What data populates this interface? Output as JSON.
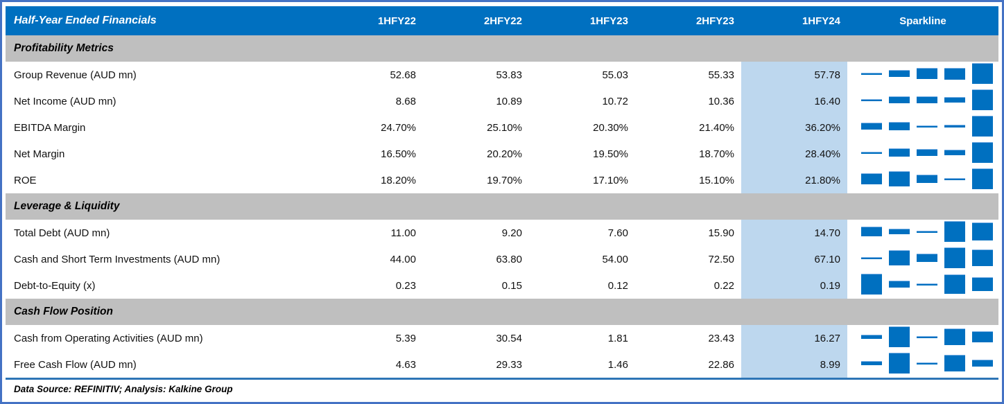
{
  "header": {
    "title": "Half-Year Ended Financials",
    "periods": [
      "1HFY22",
      "2HFY22",
      "1HFY23",
      "2HFY23",
      "1HFY24"
    ],
    "sparkline_label": "Sparkline",
    "highlight_period": "1HFY24"
  },
  "sections": [
    {
      "title": "Profitability Metrics",
      "rows": [
        {
          "label": "Group Revenue (AUD mn)",
          "values": [
            "52.68",
            "53.83",
            "55.03",
            "55.33",
            "57.78"
          ]
        },
        {
          "label": "Net Income (AUD mn)",
          "values": [
            "8.68",
            "10.89",
            "10.72",
            "10.36",
            "16.40"
          ]
        },
        {
          "label": "EBITDA Margin",
          "values": [
            "24.70%",
            "25.10%",
            "20.30%",
            "21.40%",
            "36.20%"
          ]
        },
        {
          "label": "Net Margin",
          "values": [
            "16.50%",
            "20.20%",
            "19.50%",
            "18.70%",
            "28.40%"
          ]
        },
        {
          "label": "ROE",
          "values": [
            "18.20%",
            "19.70%",
            "17.10%",
            "15.10%",
            "21.80%"
          ]
        }
      ]
    },
    {
      "title": "Leverage & Liquidity",
      "rows": [
        {
          "label": "Total Debt (AUD mn)",
          "values": [
            "11.00",
            "9.20",
            "7.60",
            "15.90",
            "14.70"
          ]
        },
        {
          "label": "Cash and Short Term Investments (AUD mn)",
          "values": [
            "44.00",
            "63.80",
            "54.00",
            "72.50",
            "67.10"
          ]
        },
        {
          "label": "Debt-to-Equity (x)",
          "values": [
            "0.23",
            "0.15",
            "0.12",
            "0.22",
            "0.19"
          ]
        }
      ]
    },
    {
      "title": "Cash Flow Position",
      "rows": [
        {
          "label": "Cash from Operating Activities (AUD mn)",
          "values": [
            "5.39",
            "30.54",
            "1.81",
            "23.43",
            "16.27"
          ]
        },
        {
          "label": "Free Cash Flow (AUD mn)",
          "values": [
            "4.63",
            "29.33",
            "1.46",
            "22.86",
            "8.99"
          ]
        }
      ]
    }
  ],
  "footer": {
    "note": "Data Source: REFINITIV; Analysis: Kalkine Group"
  },
  "colors": {
    "header_blue": "#0070C0",
    "section_gray": "#BFBFBF",
    "highlight_light_blue": "#BDD7EE",
    "sparkline_bar_blue": "#0070C0",
    "frame_border_blue": "#4472C4",
    "rule_blue": "#2E75B6"
  },
  "chart_data": {
    "type": "table",
    "title": "Half-Year Ended Financials",
    "categories": [
      "1HFY22",
      "2HFY22",
      "1HFY23",
      "2HFY23",
      "1HFY24"
    ],
    "highlighted_category": "1HFY24",
    "series": [
      {
        "name": "Group Revenue (AUD mn)",
        "section": "Profitability Metrics",
        "values": [
          52.68,
          53.83,
          55.03,
          55.33,
          57.78
        ],
        "unit": "AUD mn"
      },
      {
        "name": "Net Income (AUD mn)",
        "section": "Profitability Metrics",
        "values": [
          8.68,
          10.89,
          10.72,
          10.36,
          16.4
        ],
        "unit": "AUD mn"
      },
      {
        "name": "EBITDA Margin",
        "section": "Profitability Metrics",
        "values": [
          24.7,
          25.1,
          20.3,
          21.4,
          36.2
        ],
        "unit": "%"
      },
      {
        "name": "Net Margin",
        "section": "Profitability Metrics",
        "values": [
          16.5,
          20.2,
          19.5,
          18.7,
          28.4
        ],
        "unit": "%"
      },
      {
        "name": "ROE",
        "section": "Profitability Metrics",
        "values": [
          18.2,
          19.7,
          17.1,
          15.1,
          21.8
        ],
        "unit": "%"
      },
      {
        "name": "Total Debt (AUD mn)",
        "section": "Leverage & Liquidity",
        "values": [
          11.0,
          9.2,
          7.6,
          15.9,
          14.7
        ],
        "unit": "AUD mn"
      },
      {
        "name": "Cash and Short Term Investments (AUD mn)",
        "section": "Leverage & Liquidity",
        "values": [
          44.0,
          63.8,
          54.0,
          72.5,
          67.1
        ],
        "unit": "AUD mn"
      },
      {
        "name": "Debt-to-Equity (x)",
        "section": "Leverage & Liquidity",
        "values": [
          0.23,
          0.15,
          0.12,
          0.22,
          0.19
        ],
        "unit": "x"
      },
      {
        "name": "Cash from Operating Activities (AUD mn)",
        "section": "Cash Flow Position",
        "values": [
          5.39,
          30.54,
          1.81,
          23.43,
          16.27
        ],
        "unit": "AUD mn"
      },
      {
        "name": "Free Cash Flow (AUD mn)",
        "section": "Cash Flow Position",
        "values": [
          4.63,
          29.33,
          1.46,
          22.86,
          8.99
        ],
        "unit": "AUD mn"
      }
    ],
    "sparkline": {
      "type": "bar",
      "per_row": true,
      "scaling": "min-to-max per row",
      "color": "#0070C0"
    }
  }
}
